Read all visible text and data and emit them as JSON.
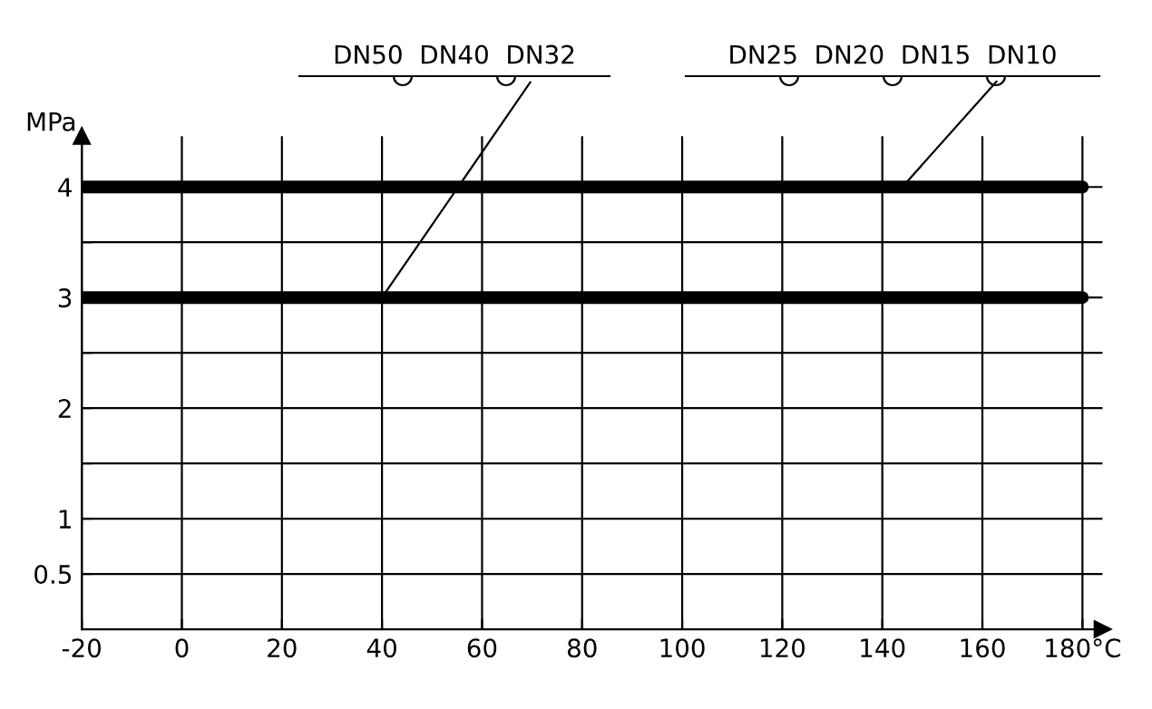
{
  "chart_data": {
    "type": "line",
    "ylabel": "MPa",
    "x": [
      -20,
      180
    ],
    "series": [
      {
        "color": "#000000",
        "values": [
          4,
          4
        ]
      },
      {
        "color": "#000000",
        "values": [
          3,
          3
        ]
      }
    ],
    "xlim": [
      -20,
      184
    ],
    "ylim": [
      0,
      4.46
    ],
    "xticks": [
      -20,
      0,
      20,
      40,
      60,
      80,
      100,
      120,
      140,
      160,
      {
        "value": 180,
        "label": "180°C"
      }
    ],
    "yticks": [
      {
        "value": 0.5,
        "label": "0.5"
      },
      1,
      {
        "value": 1.5,
        "label": null
      },
      2,
      {
        "value": 2.5,
        "label": null
      },
      3,
      {
        "value": 3.5,
        "label": null
      },
      4
    ],
    "grid": true,
    "marker": "none",
    "line_style": "solid",
    "annotations": [
      {
        "text": "DN50  DN40  DN32",
        "x": 40,
        "y": 3
      },
      {
        "text": "DN25  DN20  DN15  DN10",
        "x": 144,
        "y": 4
      }
    ]
  }
}
